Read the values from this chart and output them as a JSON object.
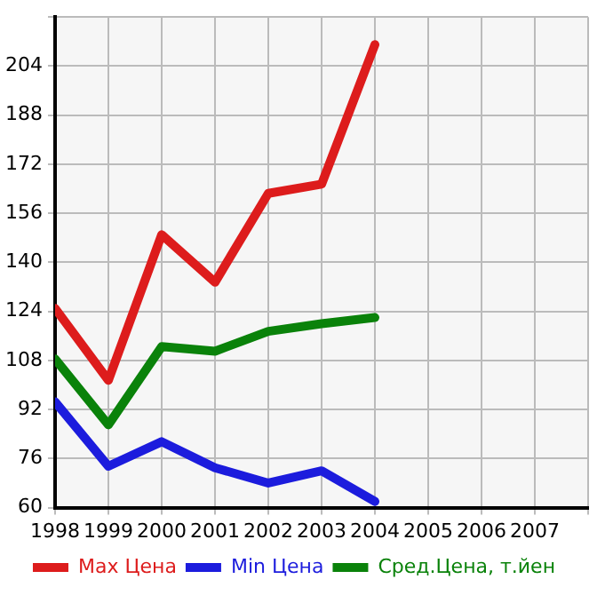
{
  "chart_data": {
    "type": "line",
    "x": [
      1998,
      1999,
      2000,
      2001,
      2002,
      2003,
      2004
    ],
    "series": [
      {
        "name": "Max Цена",
        "color": "#dd1c1c",
        "values": [
          125,
          101.5,
          149,
          133.5,
          162.5,
          165.5,
          211
        ]
      },
      {
        "name": "Min Цена",
        "color": "#1c1cdd",
        "values": [
          94.5,
          73.5,
          81.5,
          73,
          68,
          72,
          62
        ]
      },
      {
        "name": "Сред.Цена, т.йен",
        "color": "#0a820a",
        "values": [
          108.5,
          87,
          112.5,
          111,
          117.5,
          120,
          122
        ]
      }
    ],
    "xlim": [
      1998,
      2008
    ],
    "xticks": [
      1998,
      1999,
      2000,
      2001,
      2002,
      2003,
      2004,
      2005,
      2006,
      2007,
      {
        "value": 2008,
        "label": null
      }
    ],
    "ylim": [
      60,
      220
    ],
    "yticks": [
      60,
      76,
      92,
      108,
      124,
      140,
      156,
      172,
      188,
      204,
      {
        "value": 220,
        "label": null
      }
    ],
    "grid": true,
    "legend": "bottom",
    "marker": "none",
    "line_style": "solid"
  }
}
